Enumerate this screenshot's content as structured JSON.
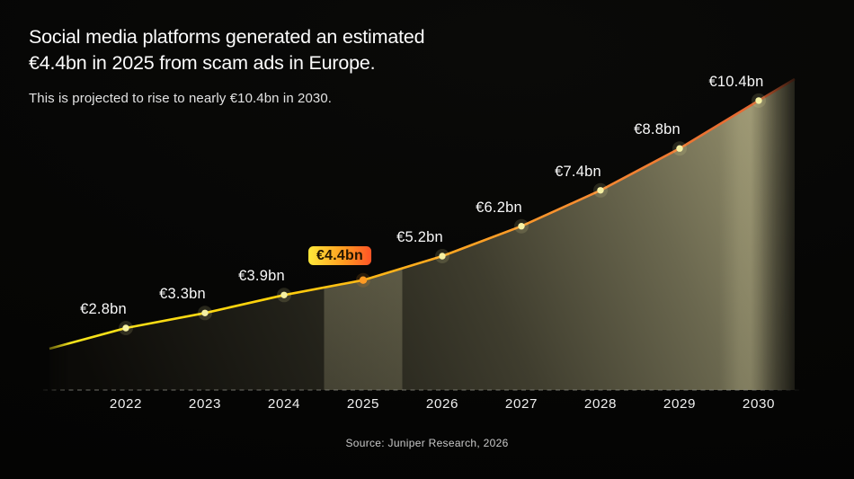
{
  "header": {
    "title_line1": "Social media platforms generated an estimated",
    "title_line2": "€4.4bn in 2025 from scam ads in Europe.",
    "subtitle": "This is projected to rise to nearly €10.4bn in 2030."
  },
  "source": "Source: Juniper Research, 2026",
  "chart_data": {
    "type": "area",
    "title": "Social media platforms generated an estimated €4.4bn in 2025 from scam ads in Europe.",
    "subtitle": "This is projected to rise to nearly €10.4bn in 2030.",
    "x": [
      2022,
      2023,
      2024,
      2025,
      2026,
      2027,
      2028,
      2029,
      2030
    ],
    "values": [
      2.8,
      3.3,
      3.9,
      4.4,
      5.2,
      6.2,
      7.4,
      8.8,
      10.4
    ],
    "value_labels": [
      "€2.8bn",
      "€3.3bn",
      "€3.9bn",
      "€4.4bn",
      "€5.2bn",
      "€6.2bn",
      "€7.4bn",
      "€8.8bn",
      "€10.4bn"
    ],
    "unit": "€bn",
    "highlight": {
      "year": 2025,
      "label": "€4.4bn"
    },
    "secondary_highlight_year": 2030,
    "xlabel": "",
    "ylabel": "",
    "ylim": [
      0,
      11
    ],
    "grid": "off",
    "legend": "none",
    "baseline_style": "dashed"
  },
  "colors": {
    "background": "#060605",
    "line_gradient": [
      "#f4e51d",
      "#ffd10a",
      "#ffab1e",
      "#f88c31",
      "#e05e33"
    ],
    "area_gradient": [
      "#0c0b08",
      "#23221a",
      "#3f3d2e",
      "#6b684f",
      "#96916e"
    ],
    "highlight_band": "#ded7a6",
    "dot": "#f6f1a3",
    "highlight_dot": "#ff9b24",
    "badge_gradient": [
      "#ffe93a",
      "#ff9d20",
      "#ff5426"
    ],
    "badge_text": "#231500",
    "value_label": "#f8f8f8",
    "axis_label": "#efefef",
    "baseline": "#8b8b82",
    "source_text": "#c9c9c9"
  }
}
